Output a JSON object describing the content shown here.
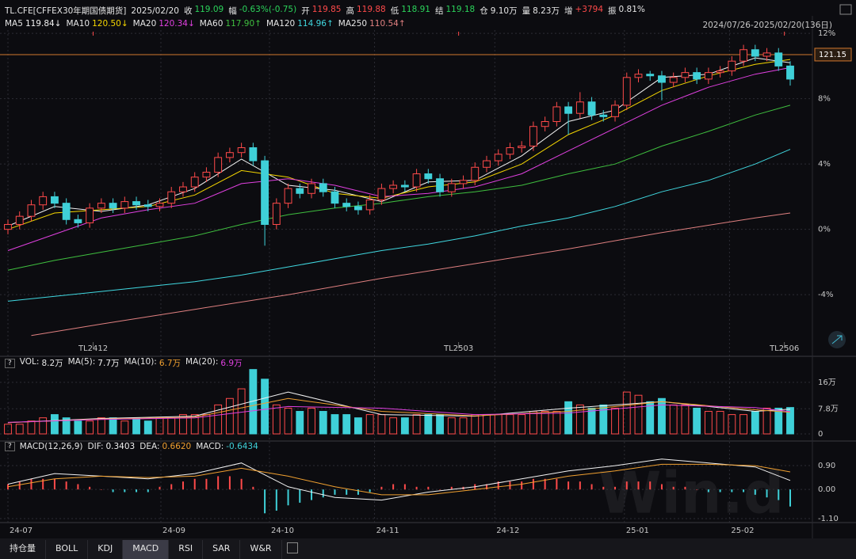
{
  "header": {
    "symbol": "TL.CFE[CFFEX30年期国债期货]",
    "date": "2025/02/20",
    "fields": [
      {
        "label": "收",
        "value": "119.09",
        "color": "#2bd45b"
      },
      {
        "label": "幅",
        "value": "-0.63%(-0.75)",
        "color": "#2bd45b"
      },
      {
        "label": "开",
        "value": "119.85",
        "color": "#ff4a4a"
      },
      {
        "label": "高",
        "value": "119.88",
        "color": "#ff4a4a"
      },
      {
        "label": "低",
        "value": "118.91",
        "color": "#2bd45b"
      },
      {
        "label": "结",
        "value": "119.18",
        "color": "#2bd45b"
      },
      {
        "label": "仓",
        "value": "9.10万",
        "color": "#e6e6e6"
      },
      {
        "label": "量",
        "value": "8.23万",
        "color": "#e6e6e6"
      },
      {
        "label": "增",
        "value": "+3794",
        "color": "#ff4a4a"
      },
      {
        "label": "振",
        "value": "0.81%",
        "color": "#e6e6e6"
      }
    ]
  },
  "help_icon": "?",
  "watermark": "Win.d",
  "tabs": [
    "持仓量",
    "BOLL",
    "KDJ",
    "MACD",
    "RSI",
    "SAR",
    "W&R"
  ],
  "active_tab": 3,
  "chart_data": [
    {
      "type": "candlestick",
      "range_label": "2024/07/26-2025/02/20(136日)",
      "up_color": "#ff4a4a",
      "down_color": "#3fd0d8",
      "open": [
        0.0,
        0.3,
        0.8,
        1.5,
        2.0,
        1.6,
        0.6,
        0.4,
        1.3,
        1.6,
        1.3,
        1.7,
        1.5,
        1.4,
        1.6,
        2.3,
        2.6,
        3.2,
        3.5,
        4.4,
        4.7,
        5.0,
        4.2,
        0.3,
        1.6,
        2.5,
        2.2,
        2.8,
        2.3,
        1.6,
        1.4,
        1.2,
        1.8,
        2.5,
        2.7,
        2.6,
        3.4,
        3.1,
        2.3,
        2.8,
        3.0,
        3.8,
        4.2,
        4.6,
        5.0,
        5.1,
        6.3,
        6.6,
        7.5,
        7.1,
        7.8,
        7.0,
        6.9,
        7.6,
        9.3,
        9.5,
        9.4,
        9.0,
        9.3,
        9.6,
        9.2,
        9.6,
        9.7,
        10.3,
        11.0,
        10.6,
        10.8,
        10.0
      ],
      "high": [
        0.6,
        1.1,
        1.8,
        2.3,
        2.3,
        1.9,
        0.9,
        1.6,
        1.9,
        1.9,
        2.0,
        2.0,
        1.8,
        1.9,
        2.6,
        2.9,
        3.5,
        3.8,
        4.7,
        5.0,
        5.3,
        5.3,
        4.5,
        1.9,
        2.8,
        2.8,
        3.1,
        3.1,
        2.6,
        1.9,
        1.7,
        2.1,
        2.8,
        3.0,
        3.0,
        3.7,
        3.7,
        3.4,
        3.1,
        3.3,
        4.1,
        4.5,
        4.9,
        5.3,
        5.4,
        6.6,
        6.9,
        7.8,
        7.8,
        8.4,
        8.1,
        7.3,
        7.9,
        9.6,
        9.8,
        9.7,
        9.7,
        9.6,
        9.9,
        9.9,
        9.9,
        10.0,
        10.6,
        11.3,
        11.3,
        11.1,
        11.1,
        10.3
      ],
      "low": [
        -0.3,
        0.0,
        0.5,
        1.2,
        1.3,
        0.3,
        0.1,
        0.1,
        1.0,
        1.0,
        1.0,
        1.2,
        1.1,
        1.1,
        1.3,
        2.0,
        2.3,
        2.9,
        3.2,
        4.1,
        4.4,
        3.9,
        -1.0,
        0.0,
        1.3,
        1.9,
        1.9,
        2.0,
        1.3,
        1.1,
        0.9,
        0.9,
        1.5,
        2.2,
        2.3,
        2.3,
        2.8,
        2.0,
        2.0,
        2.5,
        2.7,
        3.5,
        3.9,
        4.3,
        4.7,
        4.8,
        6.0,
        6.3,
        5.8,
        6.8,
        6.7,
        6.6,
        6.6,
        7.3,
        9.0,
        9.1,
        7.9,
        8.7,
        9.0,
        8.9,
        8.9,
        9.3,
        9.4,
        10.0,
        10.3,
        10.3,
        9.7,
        8.8
      ],
      "close": [
        0.3,
        0.8,
        1.5,
        2.0,
        1.6,
        0.6,
        0.4,
        1.3,
        1.6,
        1.3,
        1.7,
        1.5,
        1.4,
        1.6,
        2.3,
        2.6,
        3.2,
        3.5,
        4.4,
        4.7,
        5.0,
        4.2,
        0.3,
        1.6,
        2.5,
        2.2,
        2.8,
        2.3,
        1.6,
        1.4,
        1.2,
        1.8,
        2.5,
        2.7,
        2.6,
        3.4,
        3.1,
        2.3,
        2.8,
        3.0,
        3.8,
        4.2,
        4.6,
        5.0,
        5.1,
        6.3,
        6.6,
        7.5,
        7.1,
        7.8,
        7.0,
        6.9,
        7.6,
        9.3,
        9.5,
        9.4,
        9.0,
        9.3,
        9.6,
        9.2,
        9.6,
        9.7,
        10.3,
        11.0,
        10.6,
        10.8,
        10.0,
        9.2
      ],
      "ylim": [
        -6.9,
        12.2
      ],
      "yticks": [
        {
          "value": 12,
          "label": "12%"
        },
        {
          "value": 8,
          "label": "8%"
        },
        {
          "value": 4,
          "label": "4%"
        },
        {
          "value": 0,
          "label": "0%"
        },
        {
          "value": -4,
          "label": "-4%"
        }
      ],
      "price_line": {
        "value": 10.7,
        "label": "121.15",
        "color": "#d2772e"
      },
      "contracts": [
        {
          "value": 7.3,
          "label": "TL2412"
        },
        {
          "value": 38.6,
          "label": "TL2503"
        },
        {
          "value": 66.5,
          "label": "TL2506"
        }
      ],
      "series": [
        {
          "name": "MA5",
          "last_label": "119.84↓",
          "color": "#f2f2f2",
          "x": [
            0,
            4,
            8,
            12,
            16,
            20,
            24,
            28,
            32,
            36,
            40,
            44,
            48,
            52,
            56,
            60,
            64,
            67
          ],
          "values": [
            0.2,
            1.4,
            1.1,
            1.5,
            2.5,
            4.3,
            2.7,
            2.4,
            1.7,
            2.9,
            3.0,
            4.5,
            6.6,
            7.3,
            9.3,
            9.5,
            10.5,
            10.2
          ]
        },
        {
          "name": "MA10",
          "last_label": "120.50↓",
          "color": "#f5d600",
          "x": [
            0,
            4,
            8,
            12,
            16,
            20,
            24,
            28,
            32,
            36,
            40,
            44,
            48,
            52,
            56,
            60,
            64,
            67
          ],
          "values": [
            0.0,
            1.0,
            1.2,
            1.4,
            2.1,
            3.6,
            3.2,
            2.2,
            1.9,
            2.6,
            2.9,
            4.0,
            5.8,
            7.0,
            8.5,
            9.4,
            10.1,
            10.4
          ]
        },
        {
          "name": "MA20",
          "last_label": "120.34↓",
          "color": "#e040e0",
          "x": [
            0,
            4,
            8,
            12,
            16,
            20,
            24,
            28,
            32,
            36,
            40,
            44,
            48,
            52,
            56,
            60,
            64,
            67
          ],
          "values": [
            -1.3,
            -0.3,
            0.7,
            1.2,
            1.6,
            2.8,
            3.1,
            2.7,
            2.0,
            2.2,
            2.6,
            3.4,
            4.8,
            6.2,
            7.6,
            8.7,
            9.5,
            9.9
          ]
        },
        {
          "name": "MA60",
          "last_label": "117.90↑",
          "color": "#3fbf3f",
          "x": [
            0,
            4,
            8,
            12,
            16,
            20,
            24,
            28,
            32,
            36,
            40,
            44,
            48,
            52,
            56,
            60,
            64,
            67
          ],
          "values": [
            -2.5,
            -1.9,
            -1.4,
            -0.9,
            -0.4,
            0.3,
            0.9,
            1.3,
            1.6,
            2.0,
            2.3,
            2.7,
            3.4,
            4.0,
            5.1,
            6.0,
            7.0,
            7.6
          ]
        },
        {
          "name": "MA120",
          "last_label": "114.96↑",
          "color": "#40d8e0",
          "x": [
            0,
            4,
            8,
            12,
            16,
            20,
            24,
            28,
            32,
            36,
            40,
            44,
            48,
            52,
            56,
            60,
            64,
            67
          ],
          "values": [
            -4.4,
            -4.1,
            -3.8,
            -3.5,
            -3.2,
            -2.8,
            -2.3,
            -1.8,
            -1.3,
            -0.9,
            -0.4,
            0.2,
            0.7,
            1.4,
            2.3,
            3.0,
            4.0,
            4.9
          ]
        },
        {
          "name": "MA250",
          "last_label": "110.54↑",
          "color": "#e08080",
          "x": [
            2,
            8,
            16,
            24,
            32,
            40,
            48,
            56,
            64,
            67
          ],
          "values": [
            -6.5,
            -5.8,
            -4.9,
            -4.0,
            -3.0,
            -2.1,
            -1.2,
            -0.2,
            0.7,
            1.0
          ]
        }
      ]
    },
    {
      "type": "volume",
      "name": "VOL:",
      "last_label": "8.2万",
      "ylim": [
        0,
        20.9
      ],
      "yticks": [
        {
          "value": 16,
          "label": "16万"
        },
        {
          "value": 7.8,
          "label": "7.8万"
        },
        0
      ],
      "values": [
        3,
        3,
        4,
        5,
        6,
        5,
        4,
        4,
        5,
        5,
        4,
        5,
        4,
        5,
        5,
        6,
        6,
        6,
        9,
        11,
        14,
        20,
        17,
        9,
        8,
        7,
        8,
        7,
        6,
        6,
        5,
        6,
        6,
        5,
        5,
        6,
        6,
        6,
        5,
        5,
        6,
        6,
        6,
        6,
        6,
        7,
        7,
        7,
        10,
        9,
        8,
        9,
        8,
        13,
        12,
        10,
        11,
        9,
        9,
        8,
        7,
        7,
        6,
        6,
        7,
        8,
        8,
        8.2
      ],
      "series": [
        {
          "name": "MA(5):",
          "last_label": "7.7万",
          "color": "#f2f2f2",
          "x": [
            0,
            8,
            16,
            24,
            32,
            40,
            48,
            56,
            64,
            67
          ],
          "values": [
            3.5,
            4.8,
            5.5,
            13,
            6,
            5.5,
            8,
            10,
            7,
            7.7
          ]
        },
        {
          "name": "MA(10):",
          "last_label": "6.7万",
          "color": "#f0a030",
          "x": [
            0,
            8,
            16,
            24,
            32,
            40,
            48,
            56,
            64,
            67
          ],
          "values": [
            3.5,
            4.6,
            5.2,
            11,
            7,
            5.6,
            7,
            10,
            7.5,
            6.7
          ]
        },
        {
          "name": "MA(20):",
          "last_label": "6.9万",
          "color": "#e040e0",
          "x": [
            0,
            8,
            16,
            24,
            32,
            40,
            48,
            56,
            64,
            67
          ],
          "values": [
            3.6,
            4.5,
            5,
            8.5,
            8,
            6,
            6.5,
            9,
            8.2,
            6.9
          ]
        }
      ]
    },
    {
      "type": "macd",
      "name": "MACD(12,26,9)",
      "hist_name": "MACD:",
      "hist_label": "-0.6434",
      "ylim": [
        -1.25,
        1.35
      ],
      "yticks": [
        {
          "value": 0.9,
          "label": "0.90"
        },
        {
          "value": 0,
          "label": "0.00"
        },
        {
          "value": -1.1,
          "label": "-1.10"
        }
      ],
      "xticks": [
        {
          "value": 0,
          "label": "24-07"
        },
        {
          "value": 13.1,
          "label": "24-09"
        },
        {
          "value": 22.4,
          "label": "24-10"
        },
        {
          "value": 31.4,
          "label": "24-11"
        },
        {
          "value": 41.7,
          "label": "24-12"
        },
        {
          "value": 52.8,
          "label": "25-01"
        },
        {
          "value": 61.8,
          "label": "25-02"
        }
      ],
      "values": [
        0.2,
        0.3,
        0.4,
        0.4,
        0.4,
        0.3,
        0.2,
        0.1,
        0.0,
        -0.1,
        -0.1,
        -0.1,
        -0.1,
        0.1,
        0.2,
        0.3,
        0.4,
        0.4,
        0.5,
        0.5,
        0.4,
        0.1,
        -0.9,
        -0.8,
        -0.6,
        -0.5,
        -0.4,
        -0.3,
        -0.2,
        -0.2,
        -0.2,
        -0.1,
        0.1,
        0.2,
        0.2,
        0.1,
        0.1,
        0.0,
        0.1,
        0.1,
        0.2,
        0.2,
        0.3,
        0.3,
        0.3,
        0.4,
        0.4,
        0.4,
        0.3,
        0.3,
        0.2,
        0.1,
        0.1,
        0.3,
        0.3,
        0.3,
        0.2,
        0.1,
        0.1,
        0.0,
        -0.1,
        -0.1,
        -0.1,
        -0.1,
        -0.2,
        -0.3,
        -0.4,
        -0.6434
      ],
      "up_color": "#ff4a4a",
      "down_color": "#3fd0d8",
      "series": [
        {
          "name": "DIF:",
          "last_label": "0.3403",
          "color": "#f2f2f2",
          "x": [
            0,
            4,
            8,
            12,
            16,
            20,
            24,
            28,
            32,
            36,
            40,
            44,
            48,
            52,
            56,
            60,
            64,
            67
          ],
          "values": [
            0.2,
            0.6,
            0.5,
            0.4,
            0.6,
            1.0,
            0.1,
            -0.3,
            -0.4,
            -0.1,
            0.1,
            0.4,
            0.7,
            0.9,
            1.15,
            1.0,
            0.85,
            0.3403
          ]
        },
        {
          "name": "DEA:",
          "last_label": "0.6620",
          "color": "#f0a030",
          "x": [
            0,
            4,
            8,
            12,
            16,
            20,
            24,
            28,
            32,
            36,
            40,
            44,
            48,
            52,
            56,
            60,
            64,
            67
          ],
          "values": [
            0.1,
            0.4,
            0.5,
            0.45,
            0.5,
            0.8,
            0.5,
            0.1,
            -0.2,
            -0.2,
            0.0,
            0.2,
            0.5,
            0.7,
            0.95,
            0.95,
            0.9,
            0.662
          ]
        }
      ]
    }
  ]
}
